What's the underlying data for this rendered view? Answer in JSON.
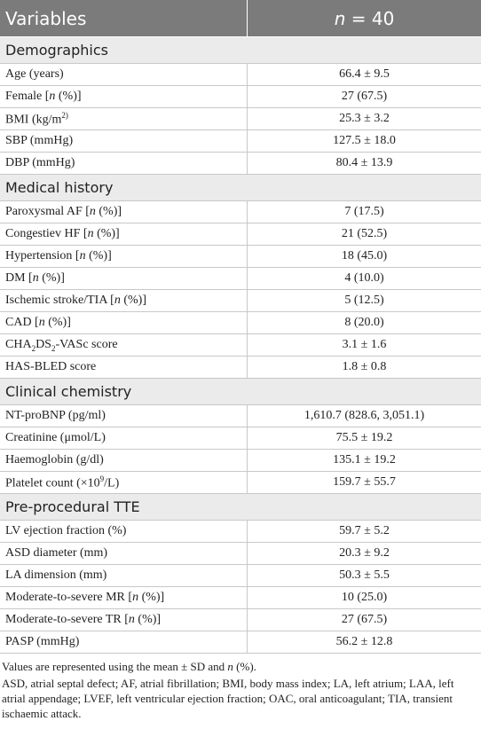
{
  "table": {
    "header": [
      [
        {
          "text": "Variables"
        }
      ],
      [
        {
          "text": "n",
          "style": "italic"
        },
        {
          "text": " = 40"
        }
      ]
    ],
    "sections": [
      {
        "title": "Demographics",
        "rows": [
          {
            "label": [
              {
                "text": "Age (years)"
              }
            ],
            "value": "66.4 ± 9.5"
          },
          {
            "label": [
              {
                "text": "Female ["
              },
              {
                "text": "n",
                "style": "italic"
              },
              {
                "text": " (%)]"
              }
            ],
            "value": "27 (67.5)"
          },
          {
            "label": [
              {
                "text": "BMI (kg/m"
              },
              {
                "text": "2)",
                "style": "sup"
              }
            ],
            "value": "25.3 ± 3.2"
          },
          {
            "label": [
              {
                "text": "SBP (mmHg)"
              }
            ],
            "value": "127.5 ± 18.0"
          },
          {
            "label": [
              {
                "text": "DBP (mmHg)"
              }
            ],
            "value": "80.4 ± 13.9"
          }
        ]
      },
      {
        "title": "Medical history",
        "rows": [
          {
            "label": [
              {
                "text": "Paroxysmal AF ["
              },
              {
                "text": "n",
                "style": "italic"
              },
              {
                "text": " (%)]"
              }
            ],
            "value": "7 (17.5)"
          },
          {
            "label": [
              {
                "text": "Congestiev HF ["
              },
              {
                "text": "n",
                "style": "italic"
              },
              {
                "text": " (%)]"
              }
            ],
            "value": "21 (52.5)"
          },
          {
            "label": [
              {
                "text": "Hypertension ["
              },
              {
                "text": "n",
                "style": "italic"
              },
              {
                "text": " (%)]"
              }
            ],
            "value": "18 (45.0)"
          },
          {
            "label": [
              {
                "text": "DM ["
              },
              {
                "text": "n",
                "style": "italic"
              },
              {
                "text": " (%)]"
              }
            ],
            "value": "4 (10.0)"
          },
          {
            "label": [
              {
                "text": "Ischemic stroke/TIA ["
              },
              {
                "text": "n",
                "style": "italic"
              },
              {
                "text": " (%)]"
              }
            ],
            "value": "5 (12.5)"
          },
          {
            "label": [
              {
                "text": "CAD ["
              },
              {
                "text": "n",
                "style": "italic"
              },
              {
                "text": " (%)]"
              }
            ],
            "value": "8 (20.0)"
          },
          {
            "label": [
              {
                "text": "CHA"
              },
              {
                "text": "2",
                "style": "sub"
              },
              {
                "text": "DS"
              },
              {
                "text": "2",
                "style": "sub"
              },
              {
                "text": "-VASc score"
              }
            ],
            "value": "3.1 ± 1.6"
          },
          {
            "label": [
              {
                "text": "HAS-BLED score"
              }
            ],
            "value": "1.8 ± 0.8"
          }
        ]
      },
      {
        "title": "Clinical chemistry",
        "rows": [
          {
            "label": [
              {
                "text": "NT-proBNP (pg/ml)"
              }
            ],
            "value": "1,610.7 (828.6, 3,051.1)"
          },
          {
            "label": [
              {
                "text": "Creatinine (μmol/L)"
              }
            ],
            "value": "75.5 ± 19.2"
          },
          {
            "label": [
              {
                "text": "Haemoglobin (g/dl)"
              }
            ],
            "value": "135.1 ± 19.2"
          },
          {
            "label": [
              {
                "text": "Platelet count (×10"
              },
              {
                "text": "9",
                "style": "sup"
              },
              {
                "text": "/L)"
              }
            ],
            "value": "159.7 ± 55.7"
          }
        ]
      },
      {
        "title": "Pre-procedural TTE",
        "rows": [
          {
            "label": [
              {
                "text": "LV ejection fraction (%)"
              }
            ],
            "value": "59.7 ± 5.2"
          },
          {
            "label": [
              {
                "text": "ASD diameter (mm)"
              }
            ],
            "value": "20.3 ± 9.2"
          },
          {
            "label": [
              {
                "text": "LA dimension (mm)"
              }
            ],
            "value": "50.3 ± 5.5"
          },
          {
            "label": [
              {
                "text": "Moderate-to-severe MR ["
              },
              {
                "text": "n",
                "style": "italic"
              },
              {
                "text": " (%)]"
              }
            ],
            "value": "10 (25.0)"
          },
          {
            "label": [
              {
                "text": "Moderate-to-severe TR ["
              },
              {
                "text": "n",
                "style": "italic"
              },
              {
                "text": " (%)]"
              }
            ],
            "value": "27 (67.5)"
          },
          {
            "label": [
              {
                "text": "PASP (mmHg)"
              }
            ],
            "value": "56.2 ± 12.8"
          }
        ]
      }
    ]
  },
  "footnotes": [
    [
      {
        "text": "Values are represented using the mean ± SD and "
      },
      {
        "text": "n",
        "style": "italic"
      },
      {
        "text": " (%)."
      }
    ],
    [
      {
        "text": "ASD, atrial septal defect; AF, atrial fibrillation; BMI, body mass index; LA, left atrium; LAA, left atrial appendage; LVEF, left ventricular ejection fraction; OAC, oral anticoagulant; TIA, transient ischaemic attack."
      }
    ]
  ]
}
